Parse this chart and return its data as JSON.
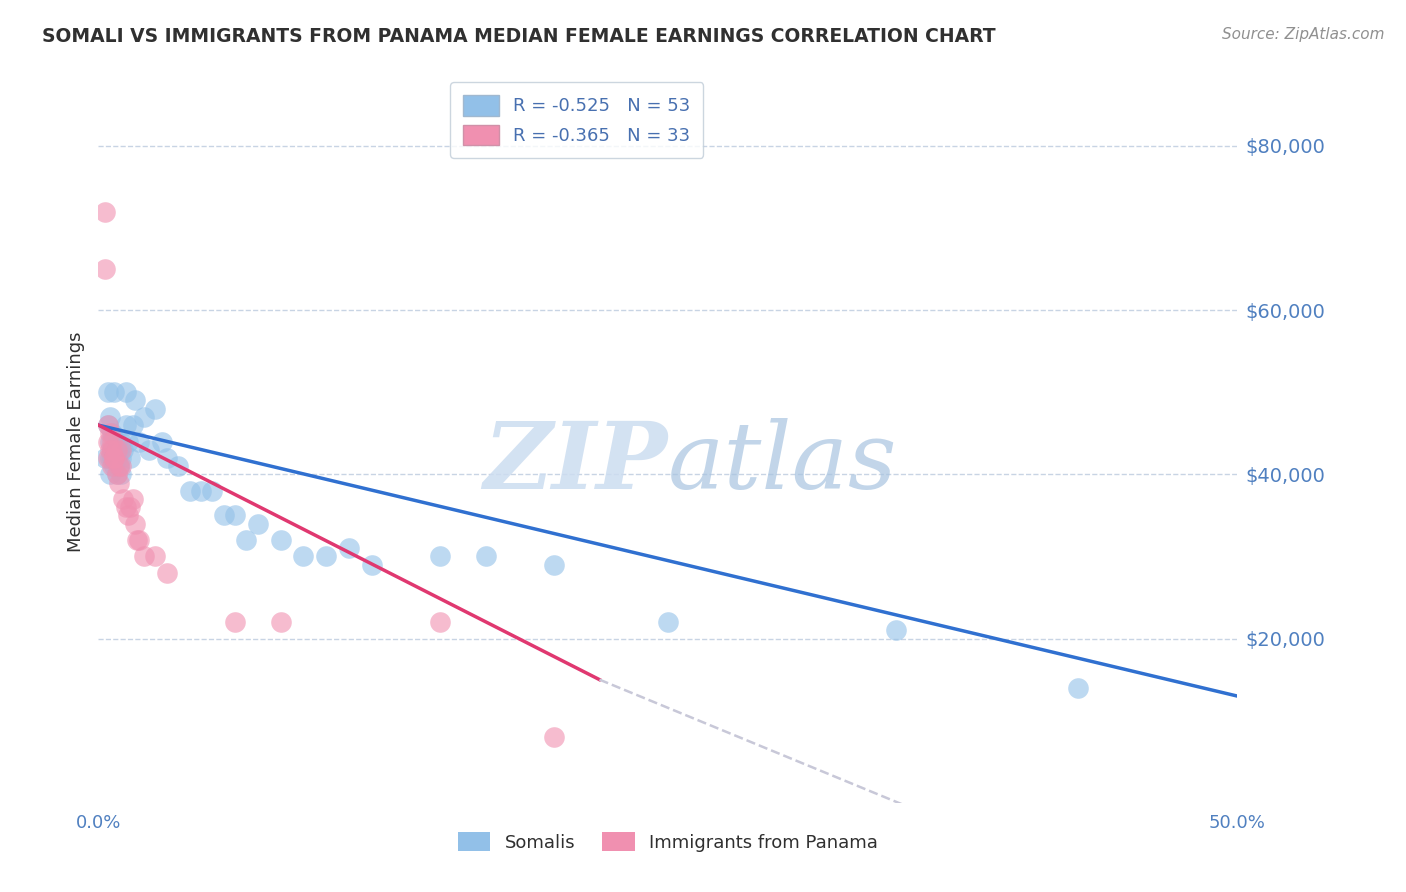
{
  "title": "SOMALI VS IMMIGRANTS FROM PANAMA MEDIAN FEMALE EARNINGS CORRELATION CHART",
  "source": "Source: ZipAtlas.com",
  "ylabel": "Median Female Earnings",
  "yticks": [
    0,
    20000,
    40000,
    60000,
    80000
  ],
  "ytick_labels": [
    "",
    "$20,000",
    "$40,000",
    "$60,000",
    "$80,000"
  ],
  "xlim": [
    0.0,
    0.5
  ],
  "ylim": [
    0,
    88000
  ],
  "legend_label_somali": "Somalis",
  "legend_label_panama": "Immigrants from Panama",
  "somali_color": "#92c0e8",
  "panama_color": "#f090b0",
  "somali_line_color": "#3070d0",
  "panama_line_color": "#e03870",
  "panama_line_dash_color": "#c8c8d8",
  "somali_scatter": {
    "x": [
      0.003,
      0.004,
      0.004,
      0.005,
      0.005,
      0.005,
      0.005,
      0.006,
      0.006,
      0.006,
      0.007,
      0.007,
      0.007,
      0.008,
      0.008,
      0.008,
      0.009,
      0.009,
      0.01,
      0.01,
      0.01,
      0.011,
      0.012,
      0.012,
      0.013,
      0.014,
      0.015,
      0.016,
      0.018,
      0.02,
      0.022,
      0.025,
      0.028,
      0.03,
      0.035,
      0.04,
      0.045,
      0.05,
      0.055,
      0.06,
      0.065,
      0.07,
      0.08,
      0.09,
      0.1,
      0.11,
      0.12,
      0.15,
      0.17,
      0.2,
      0.25,
      0.35,
      0.43
    ],
    "y": [
      42000,
      46000,
      50000,
      42000,
      44000,
      47000,
      40000,
      43000,
      42000,
      45000,
      50000,
      43000,
      41000,
      44000,
      42000,
      40000,
      43000,
      41000,
      44000,
      42000,
      40000,
      43000,
      46000,
      50000,
      44000,
      42000,
      46000,
      49000,
      44000,
      47000,
      43000,
      48000,
      44000,
      42000,
      41000,
      38000,
      38000,
      38000,
      35000,
      35000,
      32000,
      34000,
      32000,
      30000,
      30000,
      31000,
      29000,
      30000,
      30000,
      29000,
      22000,
      21000,
      14000
    ]
  },
  "panama_scatter": {
    "x": [
      0.003,
      0.003,
      0.004,
      0.004,
      0.004,
      0.005,
      0.005,
      0.006,
      0.006,
      0.006,
      0.007,
      0.007,
      0.008,
      0.008,
      0.009,
      0.009,
      0.01,
      0.01,
      0.011,
      0.012,
      0.013,
      0.014,
      0.015,
      0.016,
      0.017,
      0.018,
      0.02,
      0.025,
      0.03,
      0.06,
      0.08,
      0.15,
      0.2
    ],
    "y": [
      72000,
      65000,
      44000,
      42000,
      46000,
      43000,
      45000,
      43000,
      41000,
      44000,
      42000,
      42000,
      40000,
      43000,
      41000,
      39000,
      43000,
      41000,
      37000,
      36000,
      35000,
      36000,
      37000,
      34000,
      32000,
      32000,
      30000,
      30000,
      28000,
      22000,
      22000,
      22000,
      8000
    ]
  },
  "somali_trendline": {
    "x": [
      0.0,
      0.5
    ],
    "y": [
      46000,
      13000
    ]
  },
  "panama_trendline": {
    "x": [
      0.0,
      0.22
    ],
    "y": [
      46000,
      15000
    ]
  },
  "panama_trendline_dashed": {
    "x": [
      0.22,
      0.5
    ],
    "y": [
      15000,
      -17000
    ]
  },
  "background_color": "#ffffff",
  "grid_color": "#c8d4e4",
  "title_color": "#303030",
  "source_color": "#909090",
  "axis_color": "#4870b0",
  "tick_color": "#5080c0"
}
